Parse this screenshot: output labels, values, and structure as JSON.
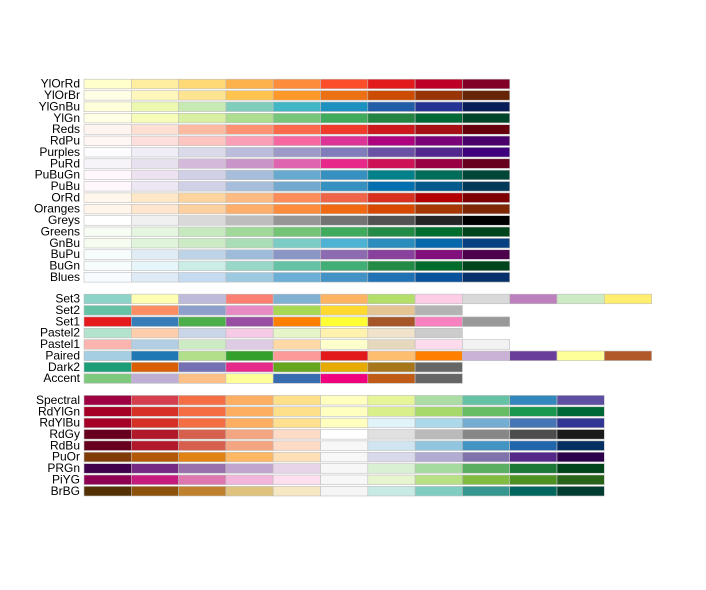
{
  "groups": [
    {
      "palettes": [
        {
          "name": "YlOrRd",
          "colors": [
            "#FFFFCC",
            "#FFEDA0",
            "#FED976",
            "#FEB24C",
            "#FD8D3C",
            "#FC4E2A",
            "#E31A1C",
            "#BD0026",
            "#800026"
          ]
        },
        {
          "name": "YlOrBr",
          "colors": [
            "#FFFFE5",
            "#FFF7BC",
            "#FEE391",
            "#FEC44F",
            "#FE9929",
            "#EC7014",
            "#CC4C02",
            "#993404",
            "#662506"
          ]
        },
        {
          "name": "YlGnBu",
          "colors": [
            "#FFFFD9",
            "#EDF8B1",
            "#C7E9B4",
            "#7FCDBB",
            "#41B6C4",
            "#1D91C0",
            "#225EA8",
            "#253494",
            "#081D58"
          ]
        },
        {
          "name": "YlGn",
          "colors": [
            "#FFFFE5",
            "#F7FCB9",
            "#D9F0A3",
            "#ADDD8E",
            "#78C679",
            "#41AB5D",
            "#238443",
            "#006837",
            "#004529"
          ]
        },
        {
          "name": "Reds",
          "colors": [
            "#FFF5F0",
            "#FEE0D2",
            "#FCBBA1",
            "#FC9272",
            "#FB6A4A",
            "#EF3B2C",
            "#CB181D",
            "#A50F15",
            "#67000D"
          ]
        },
        {
          "name": "RdPu",
          "colors": [
            "#FFF7F3",
            "#FDE0DD",
            "#FCC5C0",
            "#FA9FB5",
            "#F768A1",
            "#DD3497",
            "#AE017E",
            "#7A0177",
            "#49006A"
          ]
        },
        {
          "name": "Purples",
          "colors": [
            "#FCFBFD",
            "#EFEDF5",
            "#DADAEB",
            "#BCBDDC",
            "#9E9AC8",
            "#807DBA",
            "#6A51A3",
            "#54278F",
            "#3F007D"
          ]
        },
        {
          "name": "PuRd",
          "colors": [
            "#F7F4F9",
            "#E7E1EF",
            "#D4B9DA",
            "#C994C7",
            "#DF65B0",
            "#E7298A",
            "#CE1256",
            "#980043",
            "#67001F"
          ]
        },
        {
          "name": "PuBuGn",
          "colors": [
            "#FFF7FB",
            "#ECE2F0",
            "#D0D1E6",
            "#A6BDDB",
            "#67A9CF",
            "#3690C0",
            "#02818A",
            "#016C59",
            "#014636"
          ]
        },
        {
          "name": "PuBu",
          "colors": [
            "#FFF7FB",
            "#ECE7F2",
            "#D0D1E6",
            "#A6BDDB",
            "#74A9CF",
            "#3690C0",
            "#0570B0",
            "#045A8D",
            "#023858"
          ]
        },
        {
          "name": "OrRd",
          "colors": [
            "#FFF7EC",
            "#FEE8C8",
            "#FDD49E",
            "#FDBB84",
            "#FC8D59",
            "#EF6548",
            "#D7301F",
            "#B30000",
            "#7F0000"
          ]
        },
        {
          "name": "Oranges",
          "colors": [
            "#FFF5EB",
            "#FEE6CE",
            "#FDD0A2",
            "#FDAE6B",
            "#FD8D3C",
            "#F16913",
            "#D94801",
            "#A63603",
            "#7F2704"
          ]
        },
        {
          "name": "Greys",
          "colors": [
            "#FFFFFF",
            "#F0F0F0",
            "#D9D9D9",
            "#BDBDBD",
            "#969696",
            "#737373",
            "#525252",
            "#252525",
            "#000000"
          ]
        },
        {
          "name": "Greens",
          "colors": [
            "#F7FCF5",
            "#E5F5E0",
            "#C7E9C0",
            "#A1D99B",
            "#74C476",
            "#41AB5D",
            "#238B45",
            "#006D2C",
            "#00441B"
          ]
        },
        {
          "name": "GnBu",
          "colors": [
            "#F7FCF0",
            "#E0F3DB",
            "#CCEBC5",
            "#A8DDB5",
            "#7BCCC4",
            "#4EB3D3",
            "#2B8CBE",
            "#0868AC",
            "#084081"
          ]
        },
        {
          "name": "BuPu",
          "colors": [
            "#F7FCFD",
            "#E0ECF4",
            "#BFD3E6",
            "#9EBCDA",
            "#8C96C6",
            "#8C6BB1",
            "#88419D",
            "#810F7C",
            "#4D004B"
          ]
        },
        {
          "name": "BuGn",
          "colors": [
            "#F7FCFD",
            "#E5F5F9",
            "#CCECE6",
            "#99D8C9",
            "#66C2A4",
            "#41AE76",
            "#238B45",
            "#006D2C",
            "#00441B"
          ]
        },
        {
          "name": "Blues",
          "colors": [
            "#F7FBFF",
            "#DEEBF7",
            "#C6DBEF",
            "#9ECAE1",
            "#6BAED6",
            "#4292C6",
            "#2171B5",
            "#08519C",
            "#08306B"
          ]
        }
      ]
    },
    {
      "palettes": [
        {
          "name": "Set3",
          "colors": [
            "#8DD3C7",
            "#FFFFB3",
            "#BEBADA",
            "#FB8072",
            "#80B1D3",
            "#FDB462",
            "#B3DE69",
            "#FCCDE5",
            "#D9D9D9",
            "#BC80BD",
            "#CCEBC5",
            "#FFED6F"
          ]
        },
        {
          "name": "Set2",
          "colors": [
            "#66C2A5",
            "#FC8D62",
            "#8DA0CB",
            "#E78AC3",
            "#A6D854",
            "#FFD92F",
            "#E5C494",
            "#B3B3B3"
          ]
        },
        {
          "name": "Set1",
          "colors": [
            "#E41A1C",
            "#377EB8",
            "#4DAF4A",
            "#984EA3",
            "#FF7F00",
            "#FFFF33",
            "#A65628",
            "#F781BF",
            "#999999"
          ]
        },
        {
          "name": "Pastel2",
          "colors": [
            "#B3E2CD",
            "#FDCDAC",
            "#CBD5E8",
            "#F4CAE4",
            "#E6F5C9",
            "#FFF2AE",
            "#F1E2CC",
            "#CCCCCC"
          ]
        },
        {
          "name": "Pastel1",
          "colors": [
            "#FBB4AE",
            "#B3CDE3",
            "#CCEBC5",
            "#DECBE4",
            "#FED9A6",
            "#FFFFCC",
            "#E5D8BD",
            "#FDDAEC",
            "#F2F2F2"
          ]
        },
        {
          "name": "Paired",
          "colors": [
            "#A6CEE3",
            "#1F78B4",
            "#B2DF8A",
            "#33A02C",
            "#FB9A99",
            "#E31A1C",
            "#FDBF6F",
            "#FF7F00",
            "#CAB2D6",
            "#6A3D9A",
            "#FFFF99",
            "#B15928"
          ]
        },
        {
          "name": "Dark2",
          "colors": [
            "#1B9E77",
            "#D95F02",
            "#7570B3",
            "#E7298A",
            "#66A61E",
            "#E6AB02",
            "#A6761D",
            "#666666"
          ]
        },
        {
          "name": "Accent",
          "colors": [
            "#7FC97F",
            "#BEAED4",
            "#FDC086",
            "#FFFF99",
            "#386CB0",
            "#F0027F",
            "#BF5B17",
            "#666666"
          ]
        }
      ]
    },
    {
      "palettes": [
        {
          "name": "Spectral",
          "colors": [
            "#9E0142",
            "#D53E4F",
            "#F46D43",
            "#FDAE61",
            "#FEE08B",
            "#FFFFBF",
            "#E6F598",
            "#ABDDA4",
            "#66C2A5",
            "#3288BD",
            "#5E4FA2"
          ]
        },
        {
          "name": "RdYlGn",
          "colors": [
            "#A50026",
            "#D73027",
            "#F46D43",
            "#FDAE61",
            "#FEE08B",
            "#FFFFBF",
            "#D9EF8B",
            "#A6D96A",
            "#66BD63",
            "#1A9850",
            "#006837"
          ]
        },
        {
          "name": "RdYlBu",
          "colors": [
            "#A50026",
            "#D73027",
            "#F46D43",
            "#FDAE61",
            "#FEE090",
            "#FFFFBF",
            "#E0F3F8",
            "#ABD9E9",
            "#74ADD1",
            "#4575B4",
            "#313695"
          ]
        },
        {
          "name": "RdGy",
          "colors": [
            "#67001F",
            "#B2182B",
            "#D6604D",
            "#F4A582",
            "#FDDBC7",
            "#FFFFFF",
            "#E0E0E0",
            "#BABABA",
            "#878787",
            "#4D4D4D",
            "#1A1A1A"
          ]
        },
        {
          "name": "RdBu",
          "colors": [
            "#67001F",
            "#B2182B",
            "#D6604D",
            "#F4A582",
            "#FDDBC7",
            "#F7F7F7",
            "#D1E5F0",
            "#92C5DE",
            "#4393C3",
            "#2166AC",
            "#053061"
          ]
        },
        {
          "name": "PuOr",
          "colors": [
            "#7F3B08",
            "#B35806",
            "#E08214",
            "#FDB863",
            "#FEE0B6",
            "#F7F7F7",
            "#D8DAEB",
            "#B2ABD2",
            "#8073AC",
            "#542788",
            "#2D004B"
          ]
        },
        {
          "name": "PRGn",
          "colors": [
            "#40004B",
            "#762A83",
            "#9970AB",
            "#C2A5CF",
            "#E7D4E8",
            "#F7F7F7",
            "#D9F0D3",
            "#A6DBA0",
            "#5AAE61",
            "#1B7837",
            "#00441B"
          ]
        },
        {
          "name": "PiYG",
          "colors": [
            "#8E0152",
            "#C51B7D",
            "#DE77AE",
            "#F1B6DA",
            "#FDE0EF",
            "#F7F7F7",
            "#E6F5D0",
            "#B8E186",
            "#7FBC41",
            "#4D9221",
            "#276419"
          ]
        },
        {
          "name": "BrBG",
          "colors": [
            "#543005",
            "#8C510A",
            "#BF812D",
            "#DFC27D",
            "#F6E8C3",
            "#F5F5F5",
            "#C7EAE5",
            "#80CDC1",
            "#35978F",
            "#01665E",
            "#003C30"
          ]
        }
      ]
    }
  ]
}
